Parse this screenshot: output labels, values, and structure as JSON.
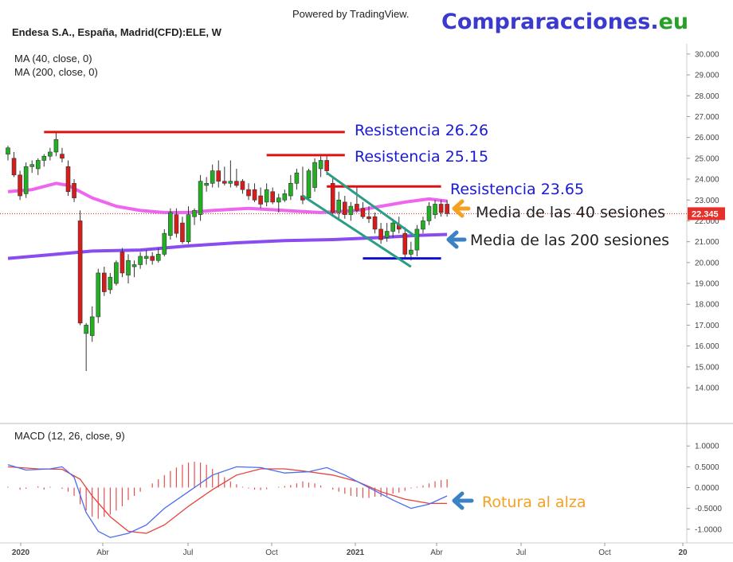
{
  "header": {
    "powered_by": "Powered by TradingView.",
    "brand_main": "Compraracciones",
    "brand_dot": ".",
    "brand_tld": "eu",
    "symbol_title": "Endesa S.A., España, Madrid(CFD):ELE, W",
    "ma40_label": "MA (40, close, 0)",
    "ma200_label": "MA (200, close, 0)",
    "macd_label": "MACD (12, 26, close, 9)"
  },
  "colors": {
    "up": "#22b022",
    "down": "#d81c1c",
    "ma40": "#ee66ee",
    "ma200": "#8a4cf0",
    "resistance": "#e01010",
    "support": "#1010d0",
    "channel": "#2a9d86",
    "macd_line": "#4a6cf0",
    "signal_line": "#e8403a",
    "hist": "#e05050",
    "arrow_orange": "#f5a020",
    "arrow_blue": "#3b82c4",
    "ann_blue": "#1a1ad8",
    "ann_black": "#222222",
    "ann_orange": "#f5a020",
    "brand_blue": "#3a3ad0",
    "brand_green": "#28a028"
  },
  "annotations": {
    "res1": "Resistencia 26.26",
    "res2": "Resistencia 25.15",
    "res3": "Resistencia 23.65",
    "ma40": "Media de las 40 sesiones",
    "ma200": "Media de las 200 sesiones",
    "breakout": "Rotura al alza"
  },
  "chart_data": [
    {
      "type": "candlestick",
      "title": "Endesa S.A., España, Madrid(CFD):ELE, W",
      "last_price_label": "22.345",
      "ylim": [
        13.2,
        30.3
      ],
      "y_ticks": [
        "14.000",
        "15.000",
        "16.000",
        "17.000",
        "18.000",
        "19.000",
        "20.000",
        "21.000",
        "22.000",
        "23.000",
        "24.000",
        "25.000",
        "26.000",
        "27.000",
        "28.000",
        "29.000",
        "30.000"
      ],
      "x_ticks": [
        "2020",
        "Abr",
        "Jul",
        "Oct",
        "2021",
        "Abr",
        "Jul",
        "Oct",
        "20"
      ],
      "candles": [
        {
          "o": 25.2,
          "h": 25.6,
          "l": 24.9,
          "c": 25.5
        },
        {
          "o": 25.0,
          "h": 25.3,
          "l": 24.1,
          "c": 24.2
        },
        {
          "o": 24.2,
          "h": 24.4,
          "l": 23.0,
          "c": 23.2
        },
        {
          "o": 23.3,
          "h": 24.8,
          "l": 23.1,
          "c": 24.6
        },
        {
          "o": 24.6,
          "h": 24.9,
          "l": 24.3,
          "c": 24.7
        },
        {
          "o": 24.5,
          "h": 25.0,
          "l": 24.2,
          "c": 24.9
        },
        {
          "o": 24.9,
          "h": 25.2,
          "l": 24.6,
          "c": 25.1
        },
        {
          "o": 25.1,
          "h": 25.5,
          "l": 24.9,
          "c": 25.3
        },
        {
          "o": 25.3,
          "h": 26.3,
          "l": 25.1,
          "c": 25.9
        },
        {
          "o": 25.2,
          "h": 25.5,
          "l": 24.8,
          "c": 25.0
        },
        {
          "o": 24.6,
          "h": 24.9,
          "l": 23.2,
          "c": 23.4
        },
        {
          "o": 23.8,
          "h": 24.0,
          "l": 22.9,
          "c": 23.1
        },
        {
          "o": 22.0,
          "h": 22.5,
          "l": 17.0,
          "c": 17.1
        },
        {
          "o": 16.6,
          "h": 17.1,
          "l": 14.8,
          "c": 17.0
        },
        {
          "o": 16.5,
          "h": 17.9,
          "l": 16.2,
          "c": 17.4
        },
        {
          "o": 17.4,
          "h": 19.7,
          "l": 17.1,
          "c": 19.5
        },
        {
          "o": 19.5,
          "h": 19.8,
          "l": 18.4,
          "c": 18.6
        },
        {
          "o": 18.7,
          "h": 19.5,
          "l": 18.5,
          "c": 19.3
        },
        {
          "o": 19.0,
          "h": 20.1,
          "l": 18.9,
          "c": 20.0
        },
        {
          "o": 20.5,
          "h": 20.7,
          "l": 19.3,
          "c": 19.5
        },
        {
          "o": 19.4,
          "h": 20.4,
          "l": 19.0,
          "c": 20.1
        },
        {
          "o": 19.8,
          "h": 20.1,
          "l": 19.3,
          "c": 19.9
        },
        {
          "o": 19.9,
          "h": 20.5,
          "l": 19.7,
          "c": 20.3
        },
        {
          "o": 20.2,
          "h": 20.6,
          "l": 19.9,
          "c": 20.3
        },
        {
          "o": 20.3,
          "h": 20.5,
          "l": 19.9,
          "c": 20.1
        },
        {
          "o": 20.1,
          "h": 20.7,
          "l": 20.0,
          "c": 20.4
        },
        {
          "o": 20.4,
          "h": 21.6,
          "l": 20.3,
          "c": 21.4
        },
        {
          "o": 21.3,
          "h": 22.6,
          "l": 21.1,
          "c": 22.4
        },
        {
          "o": 22.3,
          "h": 22.6,
          "l": 21.2,
          "c": 21.4
        },
        {
          "o": 21.9,
          "h": 22.2,
          "l": 20.9,
          "c": 21.0
        },
        {
          "o": 21.0,
          "h": 22.7,
          "l": 20.9,
          "c": 22.3
        },
        {
          "o": 22.2,
          "h": 22.6,
          "l": 21.8,
          "c": 22.5
        },
        {
          "o": 22.3,
          "h": 24.2,
          "l": 22.0,
          "c": 23.9
        },
        {
          "o": 23.7,
          "h": 24.1,
          "l": 23.4,
          "c": 23.8
        },
        {
          "o": 23.8,
          "h": 24.7,
          "l": 23.6,
          "c": 24.4
        },
        {
          "o": 24.4,
          "h": 24.9,
          "l": 23.6,
          "c": 23.9
        },
        {
          "o": 23.9,
          "h": 24.6,
          "l": 23.7,
          "c": 23.8
        },
        {
          "o": 23.8,
          "h": 24.9,
          "l": 23.6,
          "c": 23.9
        },
        {
          "o": 23.9,
          "h": 24.5,
          "l": 23.6,
          "c": 23.7
        },
        {
          "o": 23.9,
          "h": 24.0,
          "l": 23.3,
          "c": 23.5
        },
        {
          "o": 23.5,
          "h": 23.8,
          "l": 23.0,
          "c": 23.2
        },
        {
          "o": 23.5,
          "h": 23.8,
          "l": 22.9,
          "c": 23.0
        },
        {
          "o": 23.2,
          "h": 23.6,
          "l": 22.6,
          "c": 22.8
        },
        {
          "o": 22.9,
          "h": 23.8,
          "l": 22.7,
          "c": 23.5
        },
        {
          "o": 23.4,
          "h": 23.6,
          "l": 22.8,
          "c": 22.9
        },
        {
          "o": 22.9,
          "h": 23.3,
          "l": 22.4,
          "c": 23.1
        },
        {
          "o": 23.0,
          "h": 23.5,
          "l": 22.9,
          "c": 23.3
        },
        {
          "o": 23.2,
          "h": 24.2,
          "l": 23.0,
          "c": 23.8
        },
        {
          "o": 23.8,
          "h": 24.5,
          "l": 23.5,
          "c": 24.3
        },
        {
          "o": 23.2,
          "h": 24.6,
          "l": 22.8,
          "c": 23.0
        },
        {
          "o": 23.1,
          "h": 24.5,
          "l": 23.0,
          "c": 24.4
        },
        {
          "o": 23.6,
          "h": 25.0,
          "l": 23.4,
          "c": 24.8
        },
        {
          "o": 24.5,
          "h": 25.1,
          "l": 24.1,
          "c": 24.9
        },
        {
          "o": 24.9,
          "h": 25.1,
          "l": 24.2,
          "c": 24.4
        },
        {
          "o": 23.8,
          "h": 24.1,
          "l": 22.2,
          "c": 22.4
        },
        {
          "o": 22.4,
          "h": 23.4,
          "l": 22.1,
          "c": 23.0
        },
        {
          "o": 22.9,
          "h": 23.2,
          "l": 22.1,
          "c": 22.3
        },
        {
          "o": 22.3,
          "h": 22.9,
          "l": 22.0,
          "c": 22.7
        },
        {
          "o": 22.8,
          "h": 23.6,
          "l": 22.4,
          "c": 22.5
        },
        {
          "o": 22.6,
          "h": 22.9,
          "l": 22.1,
          "c": 22.2
        },
        {
          "o": 22.2,
          "h": 22.7,
          "l": 21.9,
          "c": 22.1
        },
        {
          "o": 22.2,
          "h": 22.4,
          "l": 21.4,
          "c": 21.6
        },
        {
          "o": 21.6,
          "h": 21.9,
          "l": 20.9,
          "c": 21.1
        },
        {
          "o": 21.2,
          "h": 21.9,
          "l": 21.0,
          "c": 21.5
        },
        {
          "o": 21.5,
          "h": 22.1,
          "l": 21.2,
          "c": 21.9
        },
        {
          "o": 21.8,
          "h": 22.2,
          "l": 21.4,
          "c": 21.6
        },
        {
          "o": 21.4,
          "h": 21.7,
          "l": 20.2,
          "c": 20.4
        },
        {
          "o": 20.4,
          "h": 21.0,
          "l": 20.1,
          "c": 20.6
        },
        {
          "o": 20.6,
          "h": 21.8,
          "l": 20.3,
          "c": 21.6
        },
        {
          "o": 21.6,
          "h": 22.2,
          "l": 21.4,
          "c": 22.0
        },
        {
          "o": 22.0,
          "h": 22.9,
          "l": 21.8,
          "c": 22.7
        },
        {
          "o": 22.3,
          "h": 23.0,
          "l": 22.1,
          "c": 22.8
        },
        {
          "o": 22.8,
          "h": 23.0,
          "l": 22.2,
          "c": 22.4
        },
        {
          "o": 22.8,
          "h": 23.0,
          "l": 22.2,
          "c": 22.345
        }
      ],
      "ma40": [
        {
          "i": 0,
          "v": 23.4
        },
        {
          "i": 4,
          "v": 23.5
        },
        {
          "i": 8,
          "v": 23.8
        },
        {
          "i": 10,
          "v": 23.7
        },
        {
          "i": 14,
          "v": 23.1
        },
        {
          "i": 18,
          "v": 22.7
        },
        {
          "i": 22,
          "v": 22.5
        },
        {
          "i": 26,
          "v": 22.4
        },
        {
          "i": 30,
          "v": 22.4
        },
        {
          "i": 34,
          "v": 22.5
        },
        {
          "i": 40,
          "v": 22.6
        },
        {
          "i": 46,
          "v": 22.5
        },
        {
          "i": 52,
          "v": 22.4
        },
        {
          "i": 58,
          "v": 22.5
        },
        {
          "i": 62,
          "v": 22.7
        },
        {
          "i": 66,
          "v": 22.9
        },
        {
          "i": 70,
          "v": 23.05
        },
        {
          "i": 73,
          "v": 22.95
        }
      ],
      "ma200": [
        {
          "i": 0,
          "v": 20.2
        },
        {
          "i": 8,
          "v": 20.4
        },
        {
          "i": 14,
          "v": 20.55
        },
        {
          "i": 22,
          "v": 20.6
        },
        {
          "i": 30,
          "v": 20.8
        },
        {
          "i": 38,
          "v": 20.95
        },
        {
          "i": 46,
          "v": 21.05
        },
        {
          "i": 54,
          "v": 21.1
        },
        {
          "i": 62,
          "v": 21.2
        },
        {
          "i": 68,
          "v": 21.3
        },
        {
          "i": 73,
          "v": 21.35
        }
      ],
      "resistances": [
        {
          "value": 26.26,
          "from": 6,
          "to": 56
        },
        {
          "value": 25.15,
          "from": 43,
          "to": 56
        },
        {
          "value": 23.65,
          "from": 53,
          "to": 72
        }
      ],
      "support": {
        "value": 20.2,
        "from": 59,
        "to": 72
      },
      "channel": {
        "upper": [
          {
            "i": 53,
            "v": 24.3
          },
          {
            "i": 68,
            "v": 21.2
          }
        ],
        "lower": [
          {
            "i": 49,
            "v": 23.2
          },
          {
            "i": 67,
            "v": 19.8
          }
        ]
      }
    },
    {
      "type": "macd",
      "title": "MACD (12, 26, close, 9)",
      "ylim": [
        -1.1,
        1.1
      ],
      "y_ticks": [
        "-1.0000",
        "-0.5000",
        "0.0000",
        "0.5000",
        "1.0000"
      ],
      "macd": [
        {
          "i": 0,
          "v": 0.55
        },
        {
          "i": 3,
          "v": 0.42
        },
        {
          "i": 7,
          "v": 0.45
        },
        {
          "i": 9,
          "v": 0.5
        },
        {
          "i": 11,
          "v": 0.25
        },
        {
          "i": 13,
          "v": -0.6
        },
        {
          "i": 15,
          "v": -1.05
        },
        {
          "i": 17,
          "v": -1.2
        },
        {
          "i": 20,
          "v": -1.1
        },
        {
          "i": 23,
          "v": -0.9
        },
        {
          "i": 26,
          "v": -0.5
        },
        {
          "i": 30,
          "v": -0.1
        },
        {
          "i": 34,
          "v": 0.3
        },
        {
          "i": 38,
          "v": 0.5
        },
        {
          "i": 42,
          "v": 0.48
        },
        {
          "i": 46,
          "v": 0.35
        },
        {
          "i": 50,
          "v": 0.38
        },
        {
          "i": 53,
          "v": 0.48
        },
        {
          "i": 56,
          "v": 0.3
        },
        {
          "i": 60,
          "v": 0.0
        },
        {
          "i": 64,
          "v": -0.3
        },
        {
          "i": 67,
          "v": -0.5
        },
        {
          "i": 70,
          "v": -0.4
        },
        {
          "i": 73,
          "v": -0.2
        }
      ],
      "signal": [
        {
          "i": 0,
          "v": 0.5
        },
        {
          "i": 5,
          "v": 0.45
        },
        {
          "i": 9,
          "v": 0.44
        },
        {
          "i": 12,
          "v": 0.2
        },
        {
          "i": 14,
          "v": -0.2
        },
        {
          "i": 17,
          "v": -0.7
        },
        {
          "i": 20,
          "v": -1.05
        },
        {
          "i": 23,
          "v": -1.1
        },
        {
          "i": 26,
          "v": -0.9
        },
        {
          "i": 30,
          "v": -0.45
        },
        {
          "i": 34,
          "v": -0.05
        },
        {
          "i": 38,
          "v": 0.3
        },
        {
          "i": 42,
          "v": 0.45
        },
        {
          "i": 46,
          "v": 0.45
        },
        {
          "i": 50,
          "v": 0.38
        },
        {
          "i": 54,
          "v": 0.3
        },
        {
          "i": 58,
          "v": 0.15
        },
        {
          "i": 62,
          "v": -0.1
        },
        {
          "i": 66,
          "v": -0.28
        },
        {
          "i": 70,
          "v": -0.38
        },
        {
          "i": 73,
          "v": -0.38
        }
      ],
      "histogram": [
        0.02,
        0.0,
        -0.05,
        -0.03,
        0.0,
        0.03,
        -0.05,
        0.02,
        0.0,
        -0.03,
        -0.1,
        -0.2,
        -0.4,
        -0.55,
        -0.7,
        -0.75,
        -0.7,
        -0.65,
        -0.55,
        -0.45,
        -0.3,
        -0.2,
        -0.1,
        0.0,
        0.1,
        0.2,
        0.3,
        0.4,
        0.48,
        0.55,
        0.6,
        0.62,
        0.6,
        0.55,
        0.45,
        0.35,
        0.25,
        0.15,
        0.08,
        0.02,
        -0.02,
        -0.05,
        -0.06,
        -0.04,
        0.0,
        0.02,
        0.04,
        0.06,
        0.1,
        0.15,
        0.12,
        0.1,
        0.05,
        0.0,
        -0.05,
        -0.1,
        -0.15,
        -0.2,
        -0.22,
        -0.25,
        -0.25,
        -0.22,
        -0.22,
        -0.2,
        -0.15,
        -0.12,
        -0.08,
        -0.02,
        0.02,
        0.05,
        0.1,
        0.15,
        0.18,
        0.2
      ]
    }
  ]
}
